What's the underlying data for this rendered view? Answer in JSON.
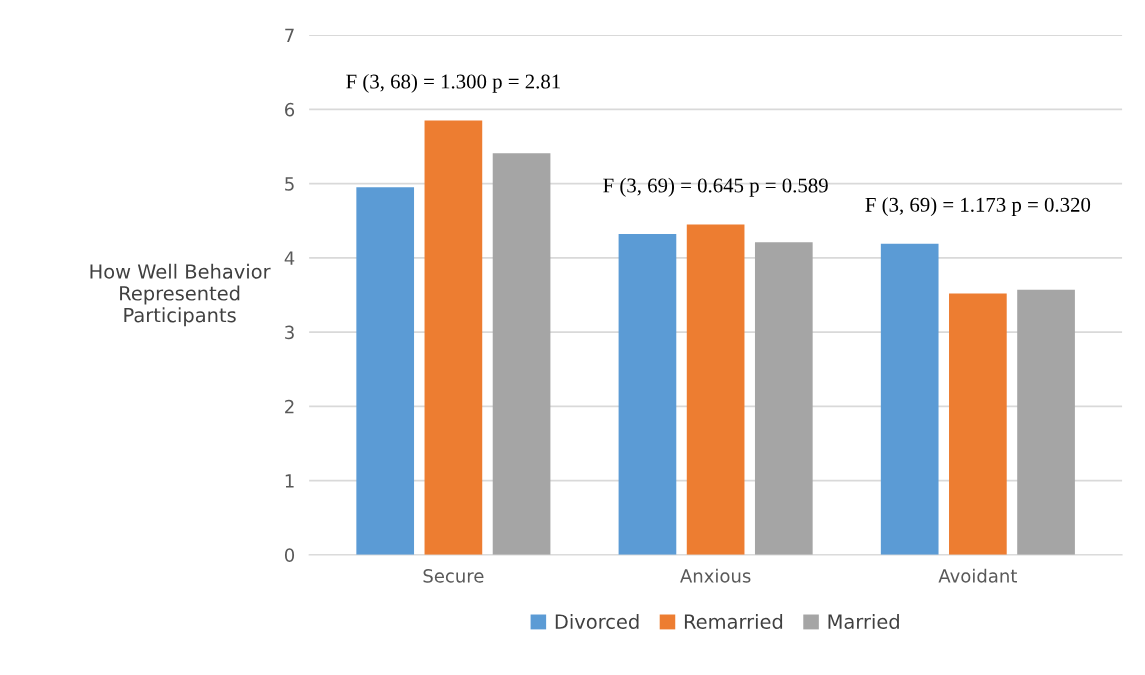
{
  "chart_data": {
    "type": "bar",
    "ylabel": "How Well Behavior\nRepresented\nParticipants",
    "categories": [
      "Secure",
      "Anxious",
      "Avoidant"
    ],
    "series": [
      {
        "name": "Divorced",
        "color": "#5b9bd5",
        "values": [
          4.95,
          4.32,
          4.19
        ]
      },
      {
        "name": "Remarried",
        "color": "#ed7d31",
        "values": [
          5.85,
          4.45,
          3.52
        ]
      },
      {
        "name": "Married",
        "color": "#a5a5a5",
        "values": [
          5.41,
          4.21,
          3.57
        ]
      }
    ],
    "annotations": [
      "F (3, 68) = 1.300 p = 2.81",
      "F (3, 69) = 0.645 p = 0.589",
      "F (3, 69) = 1.173 p = 0.320"
    ],
    "ylim": [
      0,
      7
    ],
    "yticks": [
      0,
      1,
      2,
      3,
      4,
      5,
      6,
      7
    ],
    "grid": "y",
    "legend": "bottom"
  }
}
